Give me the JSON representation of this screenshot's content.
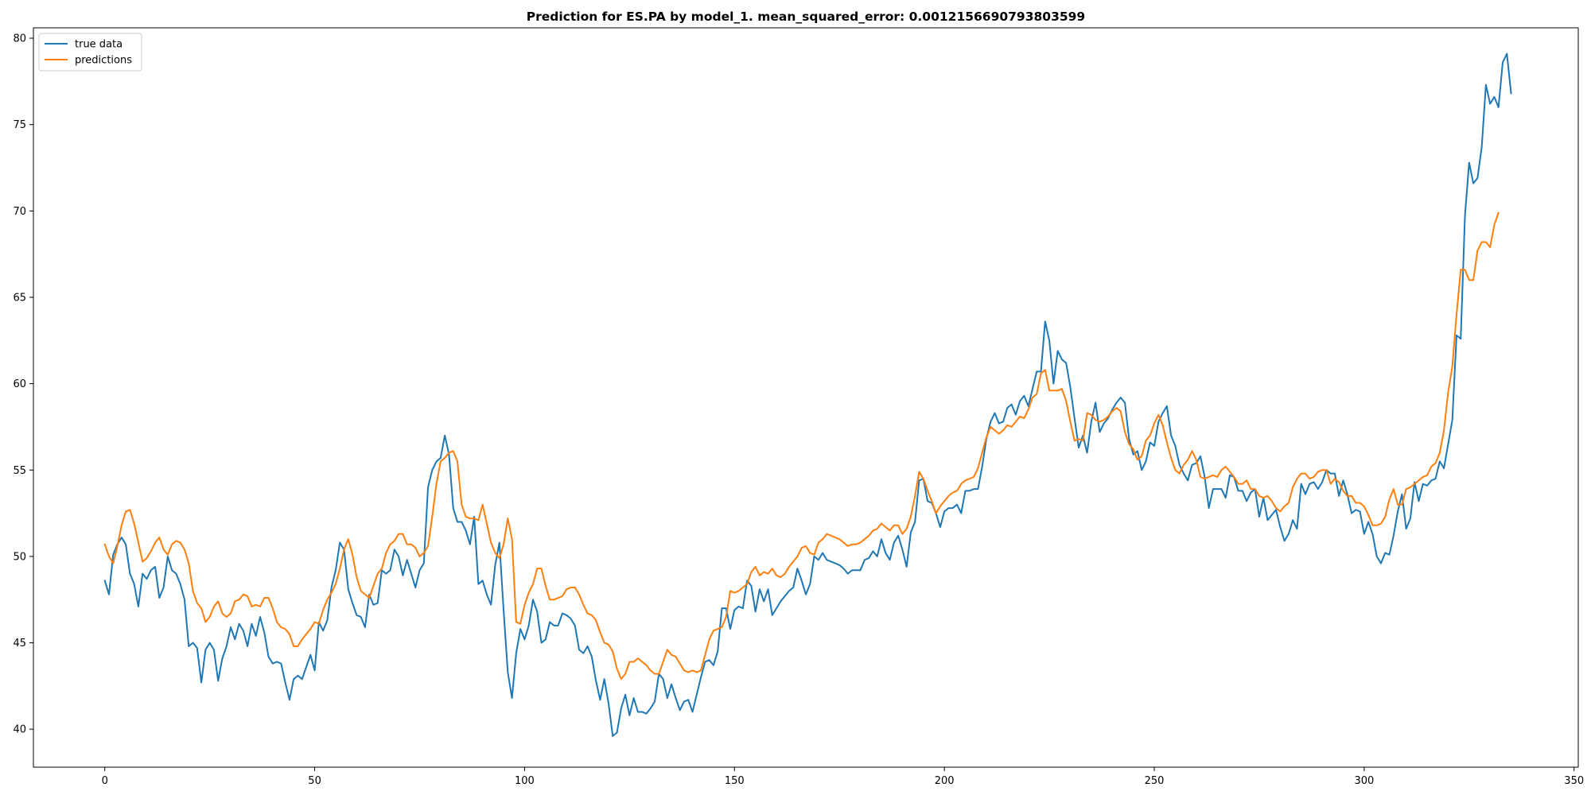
{
  "chart_data": {
    "type": "line",
    "title": "Prediction for ES.PA by model_1. mean_squared_error: 0.0012156690793803599",
    "xlabel": "",
    "ylabel": "",
    "xlim": [
      -17,
      351
    ],
    "ylim": [
      37.8,
      80.6
    ],
    "x_ticks": [
      0,
      50,
      100,
      150,
      200,
      250,
      300,
      350
    ],
    "y_ticks": [
      40,
      45,
      50,
      55,
      60,
      65,
      70,
      75,
      80
    ],
    "grid": false,
    "legend_position": "top-left",
    "colors": {
      "true_data": "#1f77b4",
      "predictions": "#ff7f0e"
    },
    "x_start": 0,
    "series": [
      {
        "name": "true data",
        "values": [
          48.6,
          47.8,
          50.1,
          50.7,
          51.1,
          50.7,
          49.0,
          48.4,
          47.1,
          49.0,
          48.7,
          49.2,
          49.4,
          47.6,
          48.2,
          50.0,
          49.2,
          49.0,
          48.4,
          47.5,
          44.8,
          45.0,
          44.7,
          42.7,
          44.6,
          45.0,
          44.6,
          42.8,
          44.1,
          44.8,
          45.9,
          45.2,
          46.1,
          45.7,
          44.8,
          46.1,
          45.4,
          46.5,
          45.6,
          44.2,
          43.8,
          43.9,
          43.8,
          42.7,
          41.7,
          42.9,
          43.1,
          42.9,
          43.6,
          44.3,
          43.4,
          46.2,
          45.7,
          46.3,
          48.2,
          49.2,
          50.8,
          50.4,
          48.1,
          47.3,
          46.6,
          46.5,
          45.9,
          47.8,
          47.2,
          47.3,
          49.2,
          49.0,
          49.2,
          50.4,
          50.0,
          48.9,
          49.8,
          49.0,
          48.2,
          49.2,
          49.6,
          54.0,
          55.0,
          55.5,
          55.7,
          57.0,
          55.9,
          52.8,
          52.0,
          52.0,
          51.5,
          50.7,
          52.3,
          48.4,
          48.6,
          47.8,
          47.2,
          49.5,
          50.8,
          46.9,
          43.3,
          41.8,
          44.4,
          45.8,
          45.2,
          46.0,
          47.5,
          46.8,
          45.0,
          45.2,
          46.2,
          46.0,
          46.0,
          46.7,
          46.6,
          46.4,
          46.0,
          44.6,
          44.4,
          44.8,
          44.2,
          42.8,
          41.7,
          42.9,
          41.5,
          39.6,
          39.8,
          41.2,
          42.0,
          40.8,
          41.8,
          41.0,
          41.0,
          40.9,
          41.2,
          41.6,
          43.2,
          42.9,
          41.8,
          42.6,
          41.8,
          41.1,
          41.6,
          41.7,
          41.0,
          42.0,
          43.0,
          43.9,
          44.0,
          43.7,
          44.5,
          47.0,
          47.0,
          45.8,
          46.9,
          47.1,
          47.0,
          48.6,
          48.3,
          46.8,
          48.1,
          47.4,
          48.1,
          46.6,
          47.0,
          47.4,
          47.7,
          48.0,
          48.2,
          49.3,
          48.6,
          47.8,
          48.4,
          50.0,
          49.8,
          50.2,
          49.8,
          49.7,
          49.6,
          49.5,
          49.3,
          49.0,
          49.2,
          49.2,
          49.2,
          49.8,
          49.9,
          50.3,
          50.0,
          51.0,
          50.2,
          49.8,
          50.8,
          51.2,
          50.4,
          49.4,
          51.4,
          52.0,
          54.4,
          54.5,
          53.2,
          53.1,
          52.5,
          51.7,
          52.6,
          52.8,
          52.8,
          53.0,
          52.5,
          53.8,
          53.8,
          53.9,
          53.9,
          55.2,
          56.8,
          57.8,
          58.3,
          57.7,
          57.8,
          58.6,
          58.8,
          58.2,
          59.0,
          59.3,
          58.7,
          59.7,
          60.7,
          60.7,
          63.6,
          62.5,
          60.0,
          61.9,
          61.4,
          61.2,
          59.8,
          58.0,
          56.3,
          57.0,
          56.0,
          57.8,
          58.9,
          57.2,
          57.7,
          58.0,
          58.5,
          58.9,
          59.2,
          58.9,
          56.8,
          55.9,
          56.1,
          55.0,
          55.5,
          56.6,
          56.4,
          57.8,
          58.3,
          58.7,
          57.0,
          56.4,
          55.3,
          54.8,
          54.4,
          55.3,
          55.4,
          55.8,
          54.6,
          52.8,
          53.9,
          53.9,
          53.9,
          53.4,
          54.7,
          54.6,
          53.8,
          53.8,
          53.2,
          53.7,
          53.9,
          52.3,
          53.4,
          52.1,
          52.4,
          52.7,
          51.7,
          50.9,
          51.3,
          52.1,
          51.6,
          54.2,
          53.6,
          54.2,
          54.3,
          53.9,
          54.3,
          55.0,
          54.8,
          54.8,
          53.5,
          54.4,
          53.6,
          52.5,
          52.7,
          52.6,
          51.3,
          52.0,
          51.3,
          50.0,
          49.6,
          50.2,
          50.1,
          51.2,
          52.6,
          53.6,
          51.6,
          52.2,
          54.3,
          53.2,
          54.2,
          54.1,
          54.4,
          54.5,
          55.5,
          55.1,
          56.5,
          57.9,
          62.8,
          62.6,
          69.7,
          72.8,
          71.6,
          71.9,
          73.7,
          77.3,
          76.2,
          76.6,
          76.0,
          78.6,
          79.1,
          76.8
        ]
      },
      {
        "name": "predictions",
        "values": [
          50.7,
          50.0,
          49.6,
          50.6,
          51.8,
          52.6,
          52.7,
          51.9,
          50.8,
          49.7,
          49.9,
          50.3,
          50.8,
          51.1,
          50.4,
          50.1,
          50.7,
          50.9,
          50.8,
          50.4,
          49.6,
          48.0,
          47.3,
          47.0,
          46.2,
          46.5,
          47.1,
          47.4,
          46.7,
          46.5,
          46.7,
          47.4,
          47.5,
          47.8,
          47.7,
          47.1,
          47.2,
          47.1,
          47.6,
          47.6,
          47.0,
          46.2,
          45.9,
          45.8,
          45.5,
          44.8,
          44.8,
          45.2,
          45.5,
          45.8,
          46.2,
          46.1,
          46.9,
          47.5,
          47.9,
          48.4,
          49.3,
          50.4,
          51.0,
          50.1,
          48.8,
          48.0,
          47.8,
          47.6,
          48.3,
          49.0,
          49.3,
          50.2,
          50.7,
          50.9,
          51.3,
          51.3,
          50.7,
          50.7,
          50.5,
          50.0,
          50.2,
          50.6,
          52.3,
          54.2,
          55.5,
          55.7,
          56.0,
          56.1,
          55.5,
          53.0,
          52.3,
          52.2,
          52.2,
          52.1,
          53.0,
          51.9,
          50.8,
          50.2,
          49.9,
          50.7,
          52.2,
          51.0,
          46.2,
          46.1,
          47.2,
          47.9,
          48.4,
          49.3,
          49.3,
          48.3,
          47.5,
          47.5,
          47.6,
          47.7,
          48.1,
          48.2,
          48.2,
          47.8,
          47.2,
          46.7,
          46.6,
          46.3,
          45.6,
          45.0,
          44.9,
          44.5,
          43.5,
          42.9,
          43.2,
          43.9,
          43.9,
          44.1,
          43.9,
          43.7,
          43.4,
          43.2,
          43.2,
          43.9,
          44.6,
          44.3,
          44.2,
          43.8,
          43.4,
          43.3,
          43.4,
          43.3,
          43.4,
          44.3,
          45.2,
          45.7,
          45.8,
          45.9,
          46.5,
          48.0,
          47.9,
          48.0,
          48.2,
          48.4,
          49.1,
          49.4,
          48.9,
          49.1,
          49.0,
          49.3,
          48.9,
          48.8,
          49.0,
          49.4,
          49.7,
          50.0,
          50.5,
          50.6,
          50.2,
          50.1,
          50.8,
          51.0,
          51.3,
          51.2,
          51.1,
          51.0,
          50.8,
          50.6,
          50.7,
          50.7,
          50.8,
          51.0,
          51.2,
          51.5,
          51.6,
          51.9,
          51.7,
          51.5,
          51.8,
          51.8,
          51.3,
          51.6,
          52.3,
          53.5,
          54.9,
          54.5,
          53.8,
          53.2,
          52.5,
          52.9,
          53.2,
          53.5,
          53.7,
          53.8,
          54.2,
          54.4,
          54.5,
          54.6,
          55.1,
          56.0,
          56.9,
          57.5,
          57.3,
          57.1,
          57.3,
          57.6,
          57.5,
          57.8,
          58.1,
          58.0,
          58.5,
          59.2,
          59.4,
          60.6,
          60.8,
          59.6,
          59.6,
          59.6,
          59.7,
          59.0,
          57.8,
          56.7,
          56.8,
          56.7,
          58.3,
          58.2,
          57.9,
          57.8,
          57.9,
          58.1,
          58.4,
          58.6,
          58.4,
          57.2,
          56.5,
          56.2,
          55.6,
          55.8,
          56.7,
          57.0,
          57.7,
          58.2,
          57.6,
          56.6,
          55.7,
          55.0,
          54.8,
          55.3,
          55.6,
          56.1,
          55.6,
          54.6,
          54.5,
          54.6,
          54.7,
          54.6,
          55.0,
          55.2,
          54.9,
          54.6,
          54.2,
          54.2,
          54.4,
          53.9,
          53.9,
          53.5,
          53.4,
          53.5,
          53.2,
          52.8,
          52.6,
          52.9,
          53.1,
          54.0,
          54.5,
          54.8,
          54.8,
          54.5,
          54.6,
          54.9,
          55.0,
          55.0,
          54.2,
          54.5,
          54.3,
          53.8,
          53.5,
          53.5,
          53.1,
          53.1,
          52.9,
          52.4,
          51.8,
          51.8,
          51.9,
          52.3,
          53.3,
          53.9,
          53.0,
          53.0,
          53.9,
          54.0,
          54.2,
          54.4,
          54.6,
          54.7,
          55.2,
          55.4,
          56.0,
          57.3,
          59.5,
          61.0,
          64.0,
          66.6,
          66.6,
          66.0,
          66.0,
          67.7,
          68.2,
          68.2,
          67.9,
          69.2,
          69.9
        ]
      }
    ]
  }
}
